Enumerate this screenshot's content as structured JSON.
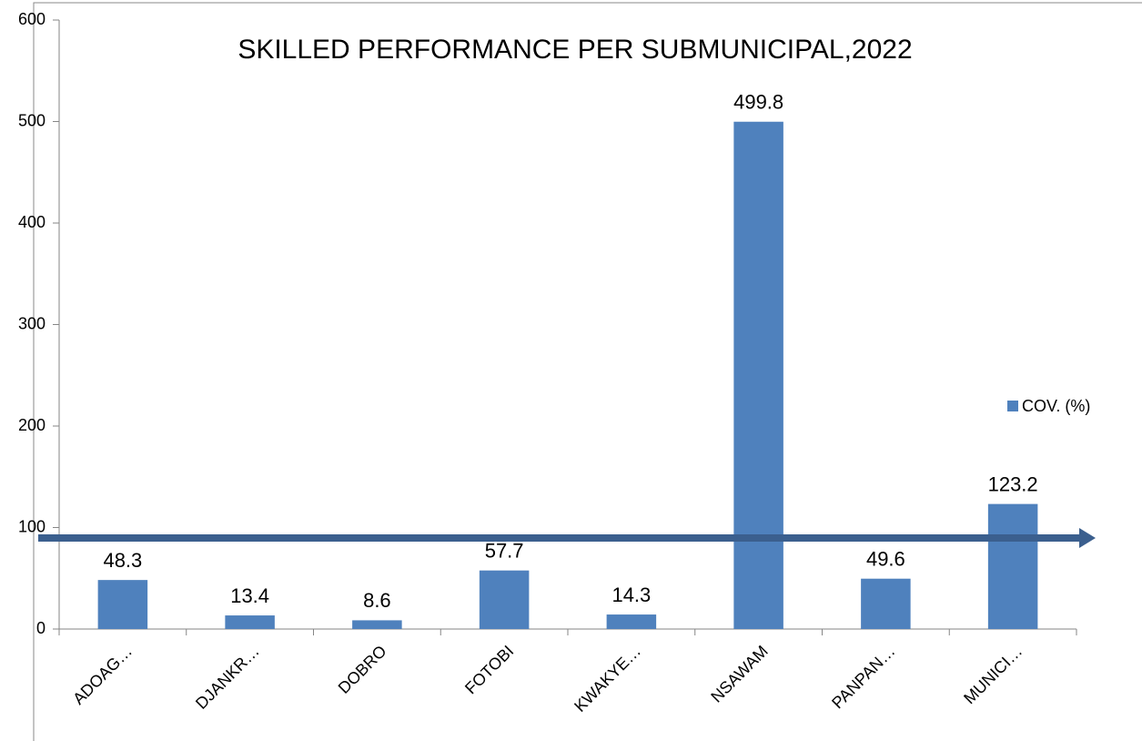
{
  "chart_data": {
    "type": "bar",
    "title": "SKILLED PERFORMANCE PER SUBMUNICIPAL,2022",
    "categories": [
      "ADOAG…",
      "DJANKR…",
      "DOBRO",
      "FOTOBI",
      "KWAKYE…",
      "NSAWAM",
      "PANPAN…",
      "MUNICI…"
    ],
    "series": [
      {
        "name": "COV. (%)",
        "color": "#4f81bd",
        "values": [
          48.3,
          13.4,
          8.6,
          57.7,
          14.3,
          499.8,
          49.6,
          123.2
        ]
      }
    ],
    "ylim": [
      0,
      600
    ],
    "yticks": [
      0,
      100,
      200,
      300,
      400,
      500,
      600
    ],
    "grid": false,
    "legend": "right"
  }
}
